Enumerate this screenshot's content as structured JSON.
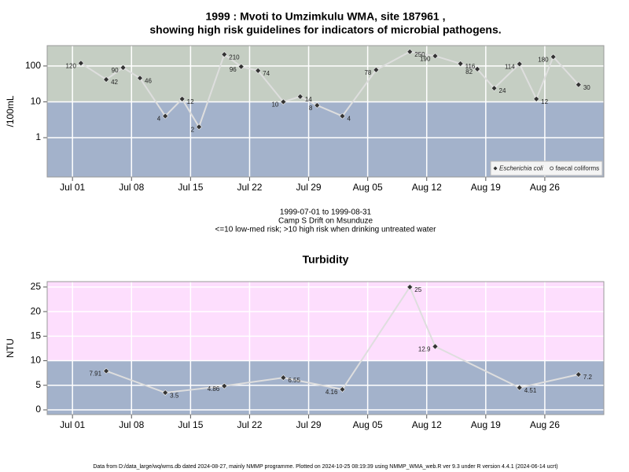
{
  "chart_data": [
    {
      "type": "line",
      "title": [
        "1999 : Mvoti to Umzimkulu WMA, site 187961 ,",
        "showing high risk guidelines for indicators of microbial pathogens."
      ],
      "notes": [
        "1999-07-01 to 1999-08-31",
        "Camp S Drift on Msunduze",
        "<=10 low-med risk; >10 high risk when drinking untreated water"
      ],
      "ylabel": "/100mL",
      "log_y": true,
      "threshold": 10,
      "band_colors": {
        "above": "#c5cec3",
        "below": "#a3b2cb"
      },
      "grid": true,
      "legend": "bottom-right",
      "x": [
        "1999-07-02",
        "1999-07-05",
        "1999-07-07",
        "1999-07-09",
        "1999-07-12",
        "1999-07-14",
        "1999-07-16",
        "1999-07-19",
        "1999-07-21",
        "1999-07-23",
        "1999-07-26",
        "1999-07-28",
        "1999-07-30",
        "1999-08-02",
        "1999-08-06",
        "1999-08-10",
        "1999-08-13",
        "1999-08-16",
        "1999-08-18",
        "1999-08-20",
        "1999-08-23",
        "1999-08-25",
        "1999-08-27",
        "1999-08-30"
      ],
      "series": [
        {
          "name": "Escherichia coli",
          "color": "#333333",
          "marker": "diamond",
          "values": [
            120,
            42,
            90,
            46,
            4,
            12,
            2,
            210,
            96,
            74,
            10,
            14,
            8,
            4,
            78,
            250,
            190,
            116,
            82,
            24,
            114,
            12,
            180,
            30
          ]
        },
        {
          "name": "faecal coliforms",
          "color": "#333333",
          "marker": "circle",
          "values": [
            null,
            null,
            null,
            null,
            null,
            null,
            null,
            null,
            null,
            null,
            null,
            null,
            null,
            null,
            null,
            null,
            null,
            null,
            null,
            null,
            null,
            null,
            null,
            null
          ]
        }
      ],
      "xlim": [
        "1999-06-28",
        "1999-09-02"
      ],
      "xticks": [
        {
          "value": "1999-07-01",
          "label": "Jul 01"
        },
        {
          "value": "1999-07-08",
          "label": "Jul 08"
        },
        {
          "value": "1999-07-15",
          "label": "Jul 15"
        },
        {
          "value": "1999-07-22",
          "label": "Jul 22"
        },
        {
          "value": "1999-07-29",
          "label": "Jul 29"
        },
        {
          "value": "1999-08-05",
          "label": "Aug 05"
        },
        {
          "value": "1999-08-12",
          "label": "Aug 12"
        },
        {
          "value": "1999-08-19",
          "label": "Aug 19"
        },
        {
          "value": "1999-08-26",
          "label": "Aug 26"
        }
      ],
      "ylim": [
        0.08,
        370
      ],
      "yticks": [
        1,
        10,
        100
      ]
    },
    {
      "type": "line",
      "title": [
        "Turbidity"
      ],
      "ylabel": "NTU",
      "log_y": false,
      "threshold": 10,
      "band_colors": {
        "above": "#fddefd",
        "below": "#a3b2cb"
      },
      "grid": true,
      "x": [
        "1999-07-05",
        "1999-07-12",
        "1999-07-19",
        "1999-07-26",
        "1999-08-02",
        "1999-08-10",
        "1999-08-13",
        "1999-08-23",
        "1999-08-30"
      ],
      "series": [
        {
          "name": "Turbidity",
          "color": "#333333",
          "marker": "diamond",
          "values": [
            7.91,
            3.5,
            4.86,
            6.55,
            4.16,
            25,
            12.9,
            4.51,
            7.2
          ]
        }
      ],
      "xlim": [
        "1999-06-28",
        "1999-09-02"
      ],
      "xticks": [
        {
          "value": "1999-07-01",
          "label": "Jul 01"
        },
        {
          "value": "1999-07-08",
          "label": "Jul 08"
        },
        {
          "value": "1999-07-15",
          "label": "Jul 15"
        },
        {
          "value": "1999-07-22",
          "label": "Jul 22"
        },
        {
          "value": "1999-07-29",
          "label": "Jul 29"
        },
        {
          "value": "1999-08-05",
          "label": "Aug 05"
        },
        {
          "value": "1999-08-12",
          "label": "Aug 12"
        },
        {
          "value": "1999-08-19",
          "label": "Aug 19"
        },
        {
          "value": "1999-08-26",
          "label": "Aug 26"
        }
      ],
      "ylim": [
        -0.96,
        26.1
      ],
      "yticks": [
        0,
        5,
        10,
        15,
        20,
        25
      ]
    }
  ],
  "footer": "Data from D:/data_large/wq/wms.db dated 2024-08-27, mainly NMMP programme. Plotted on 2024-10-25 08:19:39 using NMMP_WMA_web.R ver 9.3 under R version 4.4.1 (2024-06-14 ucrt)"
}
